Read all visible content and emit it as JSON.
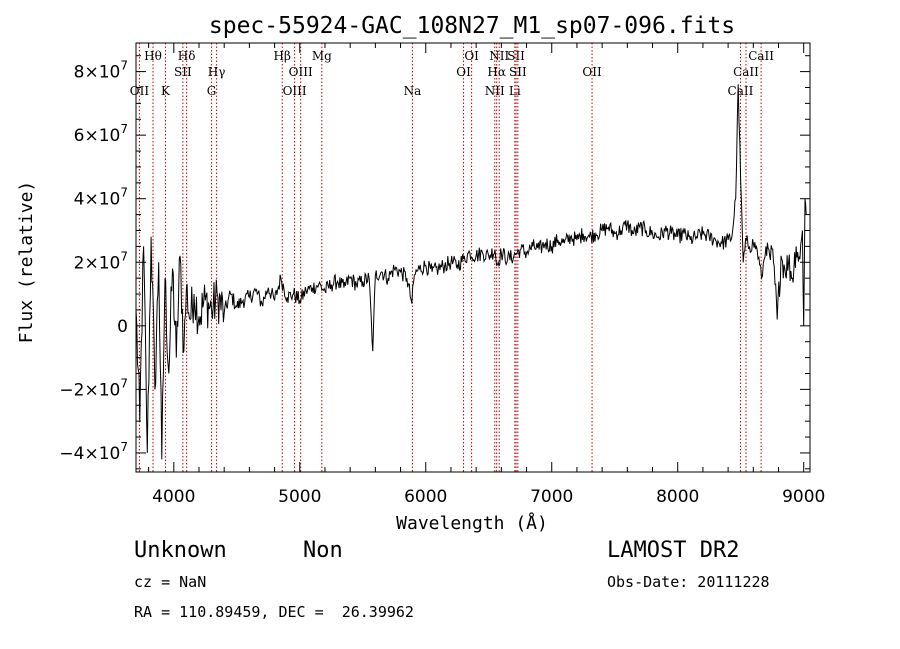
{
  "chart_data": {
    "type": "line",
    "title": "spec-55924-GAC_108N27_M1_sp07-096.fits",
    "xlabel": "Wavelength (Å)",
    "ylabel": "Flux (relative)",
    "xlim": [
      3700,
      9050
    ],
    "ylim": [
      -46000000,
      89000000
    ],
    "x_ticks": [
      4000,
      5000,
      6000,
      7000,
      8000,
      9000
    ],
    "x_tick_labels": [
      "4000",
      "5000",
      "6000",
      "7000",
      "8000",
      "9000"
    ],
    "y_ticks": [
      -40000000,
      -20000000,
      0,
      20000000,
      40000000,
      60000000,
      80000000
    ],
    "y_tick_labels": [
      {
        "base": "−4×10",
        "exp": "7"
      },
      {
        "base": "−2×10",
        "exp": "7"
      },
      {
        "base": "0",
        "exp": ""
      },
      {
        "base": "2×10",
        "exp": "7"
      },
      {
        "base": "4×10",
        "exp": "7"
      },
      {
        "base": "6×10",
        "exp": "7"
      },
      {
        "base": "8×10",
        "exp": "7"
      }
    ],
    "line_color": "#000000",
    "marker_color": "#cc0000",
    "series": [
      {
        "x": [
          3700,
          3730,
          3760,
          3790,
          3820,
          3850,
          3880,
          3905,
          3930,
          3960,
          3990,
          4020,
          4050,
          4080,
          4100,
          4130,
          4160,
          4200,
          4250,
          4300,
          4350,
          4400,
          4450,
          4500,
          4550,
          4600,
          4650,
          4700,
          4750,
          4800,
          4850,
          4900,
          4950,
          5000,
          5050,
          5100,
          5150,
          5200,
          5250,
          5300,
          5350,
          5400,
          5450,
          5500,
          5550,
          5580,
          5600,
          5650,
          5700,
          5750,
          5800,
          5850,
          5890,
          5910,
          5950,
          6000,
          6050,
          6100,
          6150,
          6200,
          6250,
          6300,
          6350,
          6400,
          6450,
          6500,
          6550,
          6563,
          6600,
          6650,
          6700,
          6750,
          6800,
          6850,
          6900,
          6950,
          7000,
          7050,
          7100,
          7150,
          7200,
          7250,
          7300,
          7350,
          7400,
          7450,
          7500,
          7550,
          7600,
          7650,
          7700,
          7750,
          7800,
          7850,
          7900,
          7950,
          8000,
          8050,
          8100,
          8150,
          8200,
          8250,
          8300,
          8350,
          8400,
          8430,
          8460,
          8480,
          8500,
          8520,
          8545,
          8570,
          8600,
          8630,
          8665,
          8700,
          8730,
          8760,
          8790,
          8820,
          8850,
          8880,
          8910,
          8940,
          8970,
          8990,
          9000,
          9010,
          9020
        ],
        "y": [
          5000000,
          -30000000,
          25000000,
          -40000000,
          28000000,
          -20000000,
          20000000,
          -42000000,
          15000000,
          -15000000,
          18000000,
          -10000000,
          22000000,
          -8000000,
          12000000,
          2000000,
          10000000,
          3000000,
          8000000,
          5000000,
          9000000,
          4000000,
          10000000,
          6000000,
          8000000,
          9000000,
          11000000,
          7000000,
          12000000,
          8000000,
          15000000,
          9000000,
          10000000,
          8000000,
          11000000,
          12000000,
          13000000,
          11000000,
          13000000,
          14000000,
          12000000,
          15000000,
          13000000,
          14000000,
          15000000,
          -8000000,
          16000000,
          17000000,
          15000000,
          18000000,
          17000000,
          15000000,
          7000000,
          16000000,
          18000000,
          19000000,
          17000000,
          18000000,
          19000000,
          20000000,
          19000000,
          21000000,
          23000000,
          22000000,
          23000000,
          22000000,
          24000000,
          19000000,
          23000000,
          21000000,
          22000000,
          24000000,
          23000000,
          25000000,
          24000000,
          26000000,
          25000000,
          27000000,
          26000000,
          28000000,
          27000000,
          29000000,
          28000000,
          29000000,
          30000000,
          31000000,
          29000000,
          30000000,
          32000000,
          29000000,
          31000000,
          30000000,
          29000000,
          28000000,
          30000000,
          29000000,
          28000000,
          29000000,
          27000000,
          28000000,
          29000000,
          28000000,
          27000000,
          26000000,
          27000000,
          28000000,
          40000000,
          76000000,
          45000000,
          20000000,
          27000000,
          25000000,
          26000000,
          24000000,
          15000000,
          25000000,
          22000000,
          20000000,
          2000000,
          22000000,
          18000000,
          20000000,
          15000000,
          25000000,
          21000000,
          30000000,
          0,
          40000000,
          35000000
        ]
      }
    ],
    "lines": [
      {
        "x": 3727,
        "label": "OII",
        "row": 2
      },
      {
        "x": 3835,
        "label": "Hθ",
        "row": 0
      },
      {
        "x": 3934,
        "label": "K",
        "row": 2
      },
      {
        "x": 4072,
        "label": "SII",
        "row": 1
      },
      {
        "x": 4102,
        "label": "Hδ",
        "row": 0
      },
      {
        "x": 4300,
        "label": "G",
        "row": 2
      },
      {
        "x": 4340,
        "label": "Hγ",
        "row": 1
      },
      {
        "x": 4861,
        "label": "Hβ",
        "row": 0
      },
      {
        "x": 4959,
        "label": "OIII",
        "row": 2
      },
      {
        "x": 5007,
        "label": "OIII",
        "row": 1
      },
      {
        "x": 5175,
        "label": "Mg",
        "row": 0
      },
      {
        "x": 5894,
        "label": "Na",
        "row": 2
      },
      {
        "x": 6300,
        "label": "OI",
        "row": 1
      },
      {
        "x": 6364,
        "label": "OI",
        "row": 0
      },
      {
        "x": 6548,
        "label": "NII",
        "row": 2
      },
      {
        "x": 6563,
        "label": "Hα",
        "row": 1
      },
      {
        "x": 6583,
        "label": "NII",
        "row": 0
      },
      {
        "x": 6707,
        "label": "Li",
        "row": 2
      },
      {
        "x": 6717,
        "label": "SII",
        "row": 0
      },
      {
        "x": 6731,
        "label": "SII",
        "row": 1
      },
      {
        "x": 7320,
        "label": "OII",
        "row": 1
      },
      {
        "x": 8498,
        "label": "CaII",
        "row": 2
      },
      {
        "x": 8542,
        "label": "CaII",
        "row": 1
      },
      {
        "x": 8662,
        "label": "CaII",
        "row": 0
      }
    ]
  },
  "info": {
    "class_label": "Unknown",
    "subclass_label": "Non",
    "survey_label": "LAMOST DR2",
    "cz_text": "cz = NaN",
    "obs_date_text": "Obs-Date: 20111228",
    "coords_text": "RA = 110.89459, DEC =  26.39962"
  }
}
